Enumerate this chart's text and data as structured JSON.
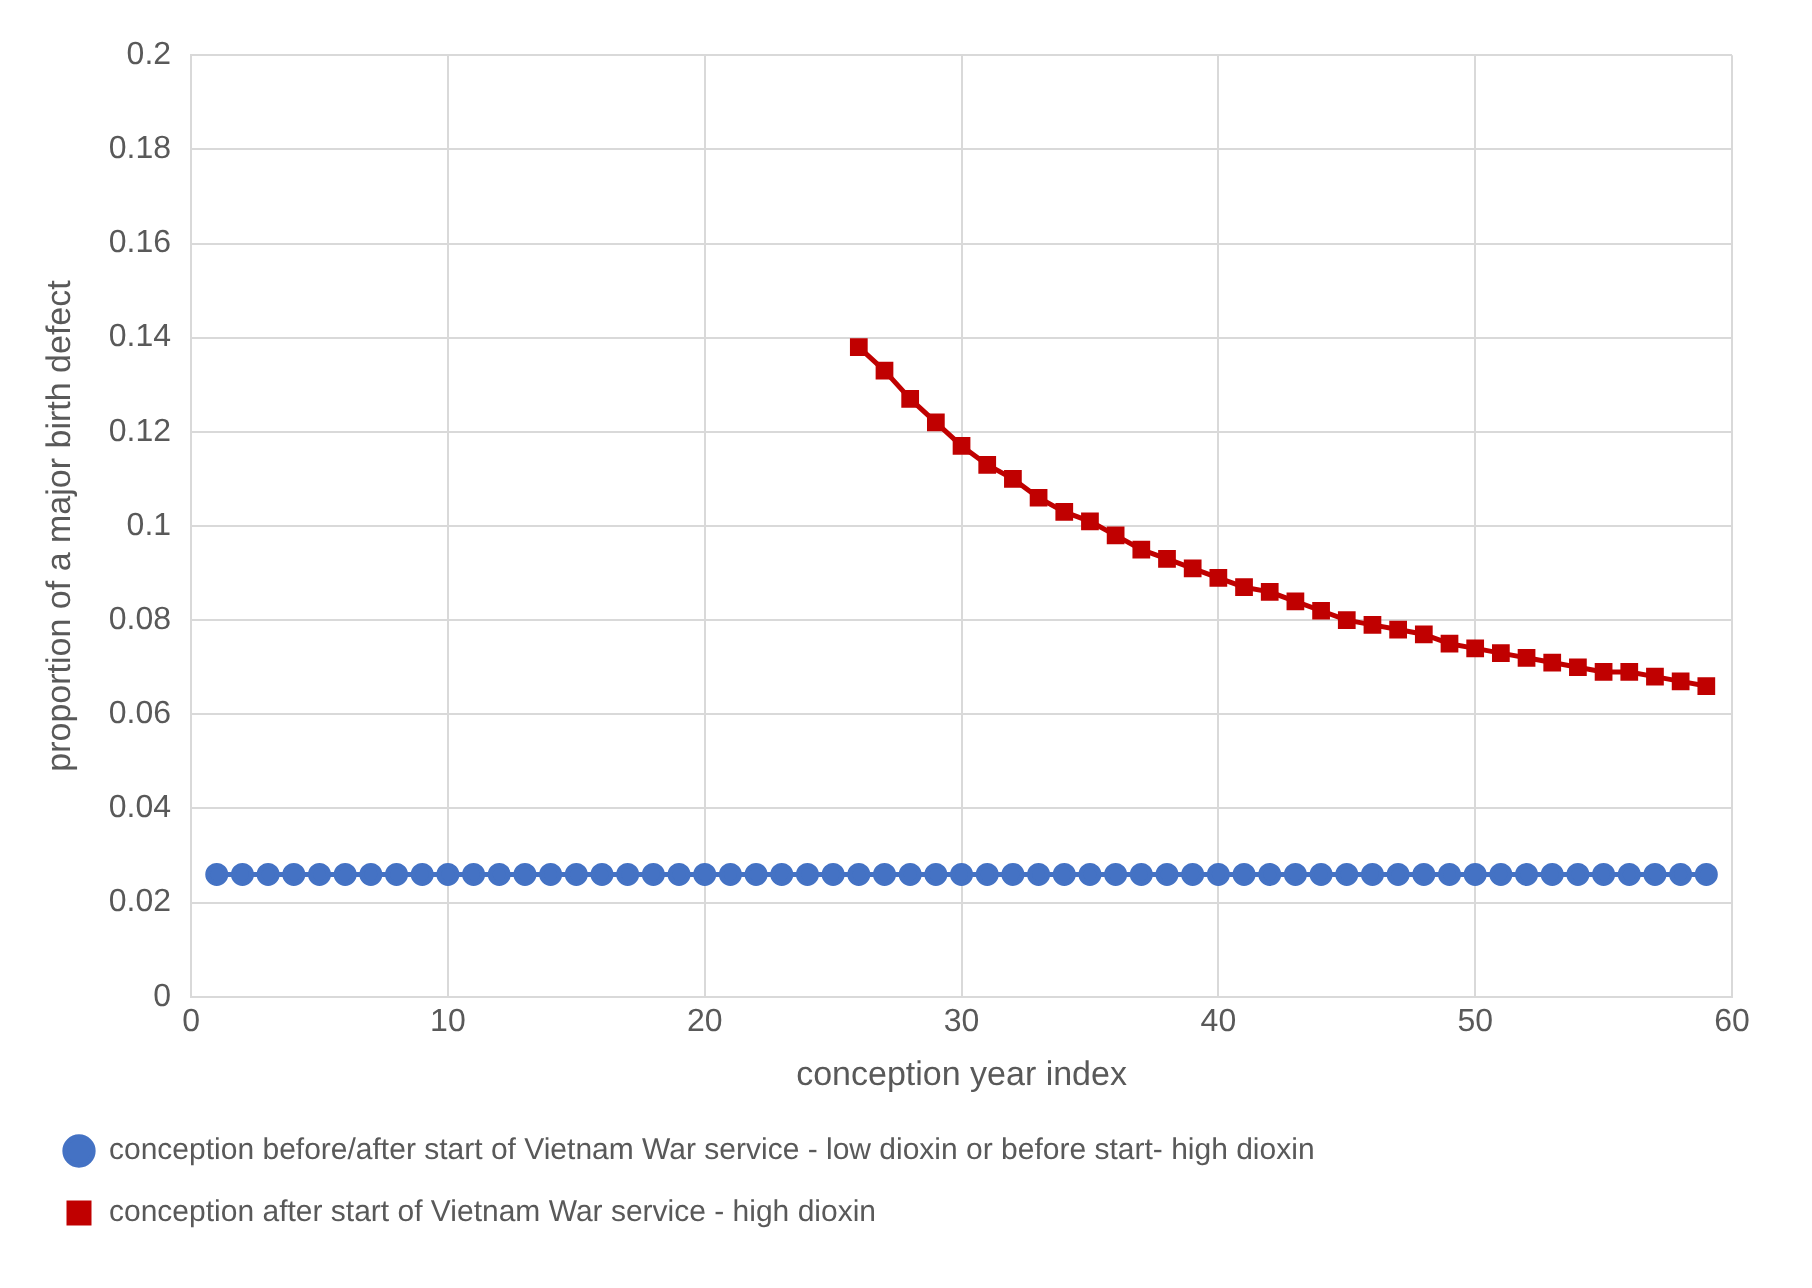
{
  "chart_data": {
    "type": "line",
    "xlabel": "conception year index",
    "ylabel": "proportion of a major birth defect",
    "xlim": [
      0,
      60
    ],
    "xticks": [
      0,
      10,
      20,
      30,
      40,
      50,
      60
    ],
    "ylim": [
      0,
      0.2
    ],
    "yticks": [
      0,
      0.02,
      0.04,
      0.06,
      0.08,
      0.1,
      0.12,
      0.14,
      0.16,
      0.18,
      0.2
    ],
    "grid": true,
    "legend": "bottom",
    "line_style": "solid",
    "series": [
      {
        "name": "conception before/after start of Vietnam War service - low dioxin or before start- high dioxin",
        "color": "#4472c4",
        "marker": "circle",
        "x": [
          1,
          2,
          3,
          4,
          5,
          6,
          7,
          8,
          9,
          10,
          11,
          12,
          13,
          14,
          15,
          16,
          17,
          18,
          19,
          20,
          21,
          22,
          23,
          24,
          25,
          26,
          27,
          28,
          29,
          30,
          31,
          32,
          33,
          34,
          35,
          36,
          37,
          38,
          39,
          40,
          41,
          42,
          43,
          44,
          45,
          46,
          47,
          48,
          49,
          50,
          51,
          52,
          53,
          54,
          55,
          56,
          57,
          58,
          59
        ],
        "values": [
          0.026,
          0.026,
          0.026,
          0.026,
          0.026,
          0.026,
          0.026,
          0.026,
          0.026,
          0.026,
          0.026,
          0.026,
          0.026,
          0.026,
          0.026,
          0.026,
          0.026,
          0.026,
          0.026,
          0.026,
          0.026,
          0.026,
          0.026,
          0.026,
          0.026,
          0.026,
          0.026,
          0.026,
          0.026,
          0.026,
          0.026,
          0.026,
          0.026,
          0.026,
          0.026,
          0.026,
          0.026,
          0.026,
          0.026,
          0.026,
          0.026,
          0.026,
          0.026,
          0.026,
          0.026,
          0.026,
          0.026,
          0.026,
          0.026,
          0.026,
          0.026,
          0.026,
          0.026,
          0.026,
          0.026,
          0.026,
          0.026,
          0.026,
          0.026
        ]
      },
      {
        "name": "conception after start of Vietnam War service - high dioxin",
        "color": "#c00000",
        "marker": "square",
        "x": [
          26,
          27,
          28,
          29,
          30,
          31,
          32,
          33,
          34,
          35,
          36,
          37,
          38,
          39,
          40,
          41,
          42,
          43,
          44,
          45,
          46,
          47,
          48,
          49,
          50,
          51,
          52,
          53,
          54,
          55,
          56,
          57,
          58,
          59
        ],
        "values": [
          0.138,
          0.133,
          0.127,
          0.122,
          0.117,
          0.113,
          0.11,
          0.106,
          0.103,
          0.101,
          0.098,
          0.095,
          0.093,
          0.091,
          0.089,
          0.087,
          0.086,
          0.084,
          0.082,
          0.08,
          0.079,
          0.078,
          0.077,
          0.075,
          0.074,
          0.073,
          0.072,
          0.071,
          0.07,
          0.069,
          0.069,
          0.068,
          0.067,
          0.066
        ]
      }
    ]
  }
}
